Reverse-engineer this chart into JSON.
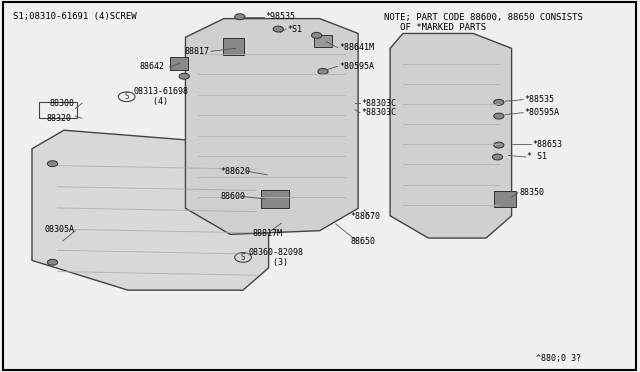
{
  "bg_color": "#f0f0f0",
  "border_color": "#000000",
  "line_color": "#555555",
  "text_color": "#000000",
  "diagram_color": "#c8c8c8",
  "title_note": "NOTE; PART CODE 88600, 88650 CONSISTS\n   OF *MARKED PARTS",
  "header_left": "S1;08310-61691 (4)SCREW",
  "footer_ref": "^880;0 3?",
  "font_size_main": 6.5,
  "font_size_label": 6.0,
  "font_size_circle": 5.5
}
